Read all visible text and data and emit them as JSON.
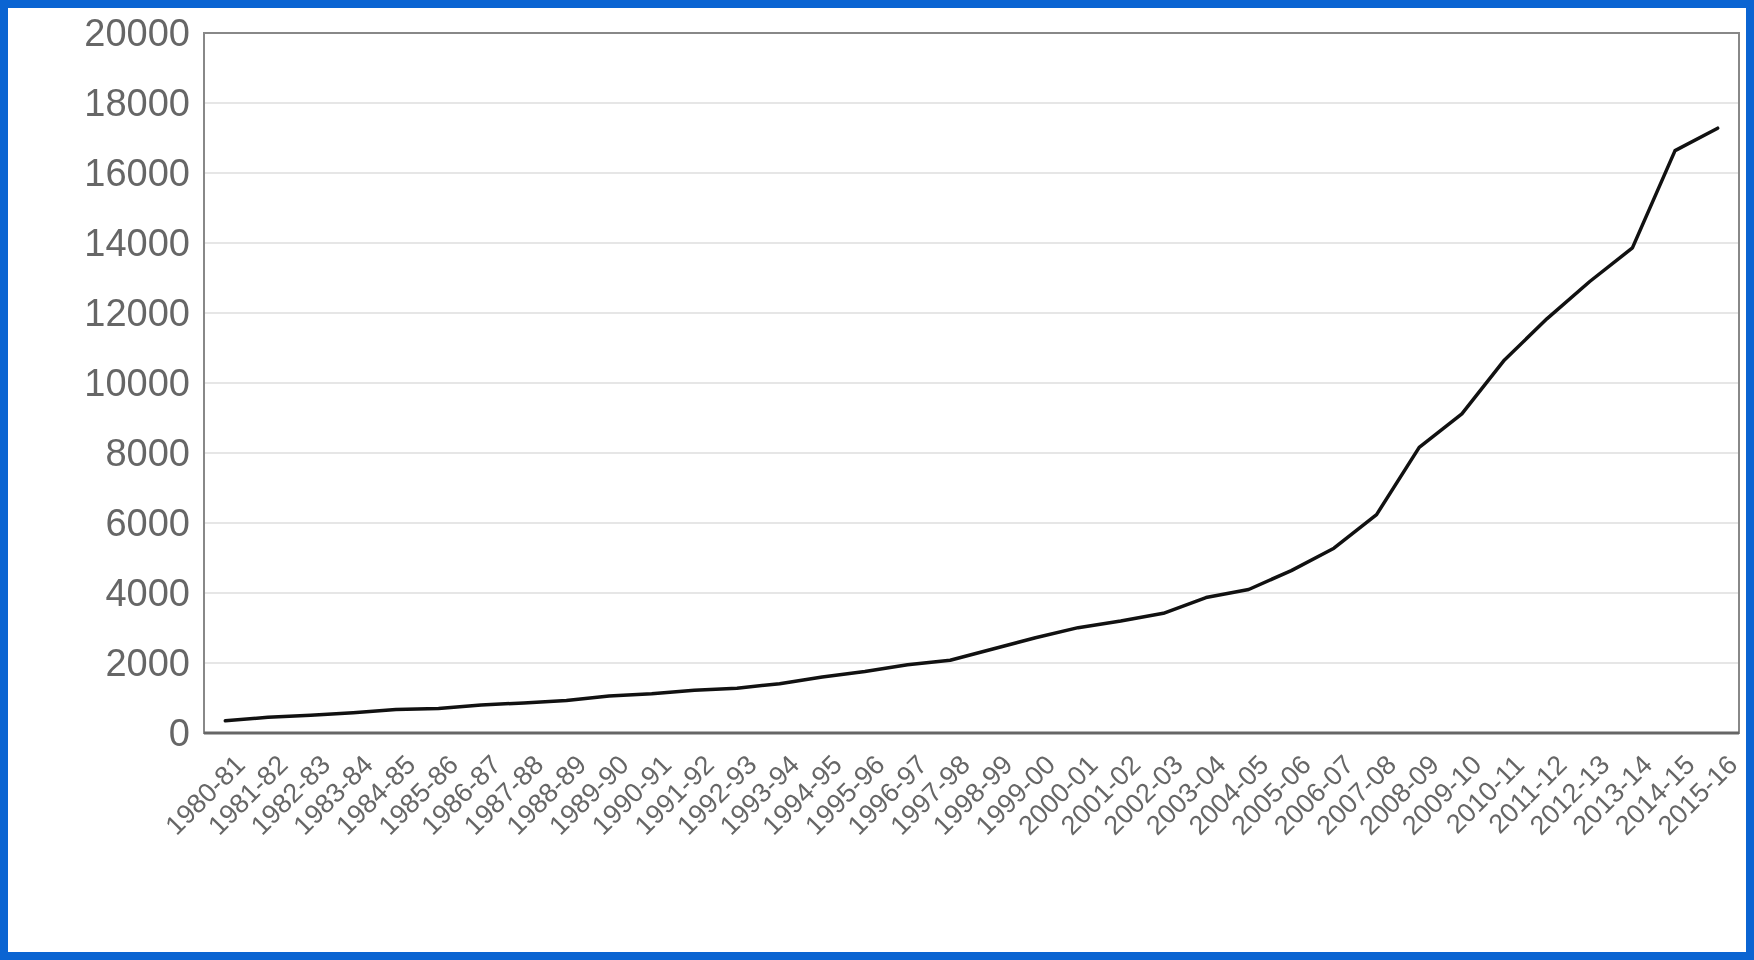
{
  "chart_data": {
    "type": "line",
    "categories": [
      "1980-81",
      "1981-82",
      "1982-83",
      "1983-84",
      "1984-85",
      "1985-86",
      "1986-87",
      "1987-88",
      "1988-89",
      "1989-90",
      "1990-91",
      "1991-92",
      "1992-93",
      "1993-94",
      "1994-95",
      "1995-96",
      "1996-97",
      "1997-98",
      "1998-99",
      "1999-00",
      "2000-01",
      "2001-02",
      "2002-03",
      "2003-04",
      "2004-05",
      "2005-06",
      "2006-07",
      "2007-08",
      "2008-09",
      "2009-10",
      "2010-11",
      "2011-12",
      "2012-13",
      "2013-14",
      "2014-15",
      "2015-16"
    ],
    "series": [
      {
        "color": "#111111",
        "values": [
          350,
          450,
          510,
          580,
          670,
          700,
          800,
          860,
          930,
          1060,
          1120,
          1220,
          1280,
          1410,
          1600,
          1760,
          1950,
          2080,
          2400,
          2720,
          3010,
          3200,
          3420,
          3870,
          4100,
          4640,
          5280,
          6240,
          8160,
          9120,
          10660,
          11840,
          12900,
          13860,
          16640,
          17280
        ]
      }
    ],
    "ylim": [
      0,
      20000
    ],
    "yticks": [
      0,
      2000,
      4000,
      6000,
      8000,
      10000,
      12000,
      14000,
      16000,
      18000,
      20000
    ],
    "grid": "y",
    "marker": "none",
    "line_style": "solid"
  }
}
